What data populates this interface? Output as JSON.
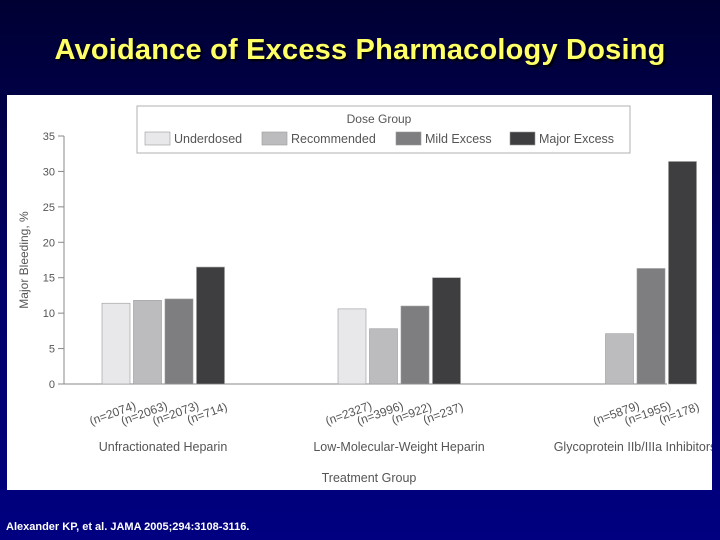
{
  "slide": {
    "title": "Avoidance of Excess Pharmacology Dosing",
    "citation": "Alexander KP, et al. JAMA 2005;294:3108-3116."
  },
  "colors": {
    "background": "#000070",
    "title": "#ffff66",
    "underdosed": "#e8e8ea",
    "recommended": "#bcbcbe",
    "mild_excess": "#7e7e80",
    "major_excess": "#3e3e40"
  },
  "chart_data": {
    "type": "bar",
    "title": "",
    "xlabel": "Treatment Group",
    "ylabel": "Major Bleeding, %",
    "ylim": [
      0,
      35
    ],
    "yticks": [
      "0",
      "5",
      "10",
      "15",
      "20",
      "25",
      "30",
      "35"
    ],
    "grid": false,
    "legend": {
      "title": "Dose Group",
      "placement": "top"
    },
    "categories": [
      "Unfractionated Heparin",
      "Low-Molecular-Weight Heparin",
      "Glycoprotein IIb/IIIa Inhibitors"
    ],
    "series": [
      {
        "name": "Underdosed",
        "color": "#e8e8ea",
        "values": [
          11.4,
          10.6,
          null
        ],
        "n_labels": [
          "(n=2074)",
          "(n=2327)",
          ""
        ]
      },
      {
        "name": "Recommended",
        "color": "#bcbcbe",
        "values": [
          11.8,
          7.8,
          7.1
        ],
        "n_labels": [
          "(n=2063)",
          "(n=3996)",
          "(n=5879)"
        ]
      },
      {
        "name": "Mild Excess",
        "color": "#7e7e80",
        "values": [
          12.0,
          11.0,
          16.3
        ],
        "n_labels": [
          "(n=2073)",
          "(n=922)",
          "(n=1955)"
        ]
      },
      {
        "name": "Major Excess",
        "color": "#3e3e40",
        "values": [
          16.5,
          15.0,
          31.4
        ],
        "n_labels": [
          "(n=714)",
          "(n=237)",
          "(n=178)"
        ]
      }
    ]
  }
}
